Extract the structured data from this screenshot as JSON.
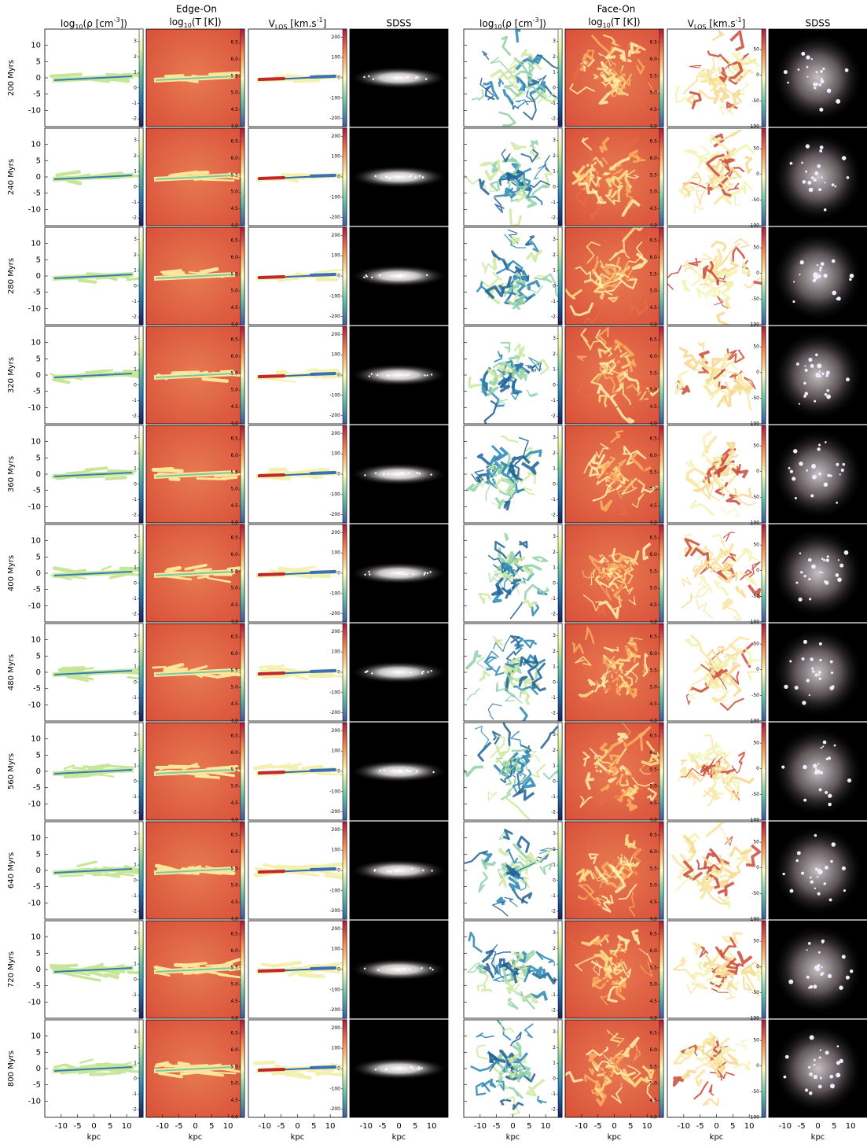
{
  "figure": {
    "headers": {
      "edge_on": "Edge-On",
      "face_on": "Face-On",
      "density": {
        "a": "log",
        "b": "10",
        "c": "(ρ [cm",
        "d": "-3",
        "e": "])"
      },
      "temperature": {
        "a": "log",
        "b": "10",
        "c": "(T [K])"
      },
      "velocity": {
        "a": "V",
        "b": "LOS",
        "c": " [km.s",
        "d": "-1",
        "e": "]"
      },
      "sdss": "SDSS"
    },
    "rows": [
      "200 Myrs",
      "240 Myrs",
      "280 Myrs",
      "320 Myrs",
      "360 Myrs",
      "400 Myrs",
      "480 Myrs",
      "560 Myrs",
      "640 Myrs",
      "720 Myrs",
      "800 Myrs"
    ],
    "ylim": [
      -15,
      15
    ],
    "yticks": [
      10,
      5,
      0,
      -5,
      -10
    ],
    "xlim": [
      -15,
      15
    ],
    "xticks": [
      -10,
      -5,
      0,
      5,
      10
    ],
    "xlabel": "kpc",
    "colorbars": {
      "density": {
        "lim": [
          -2.5,
          3.8
        ],
        "ticks": [
          -2,
          -1,
          0,
          1,
          2,
          3
        ]
      },
      "temperature": {
        "lim": [
          4.0,
          6.9
        ],
        "ticks": [
          {
            "value": 4,
            "label": "4.0"
          },
          4.5,
          {
            "value": 5,
            "label": "5.0"
          },
          5.5,
          {
            "value": 6,
            "label": "6.0"
          },
          6.5
        ]
      },
      "velocity_edge": {
        "lim": [
          -240,
          240
        ],
        "ticks": [
          -200,
          -100,
          0,
          100,
          200
        ]
      },
      "velocity_face": {
        "lim": [
          -100,
          90
        ],
        "ticks": [
          -100,
          -50,
          0,
          50
        ]
      }
    }
  }
}
